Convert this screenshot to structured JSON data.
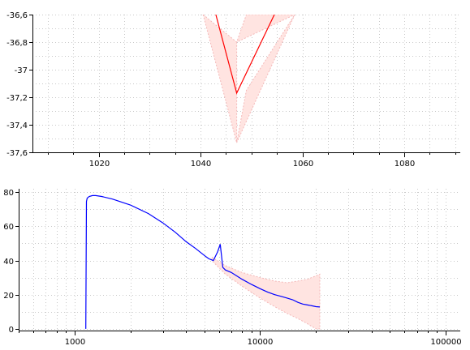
{
  "chart_data": [
    {
      "type": "line",
      "title": "",
      "xlabel": "",
      "ylabel": "",
      "xlim": [
        1007,
        1091
      ],
      "ylim": [
        -37.6,
        -36.6
      ],
      "x_ticks": [
        1020,
        1040,
        1060,
        1080
      ],
      "x_tick_labels": [
        "1020",
        "1040",
        "1060",
        "1080"
      ],
      "y_ticks": [
        -36.6,
        -36.8,
        -37.0,
        -37.2,
        -37.4,
        -37.6
      ],
      "y_tick_labels": [
        "-36,6",
        "-36,8",
        "-37",
        "-37,2",
        "-37,4",
        "-37,6"
      ],
      "grid": true,
      "colors": {
        "line": "#ff0000",
        "band": "#ffe4e1",
        "band_edge": "#f4b8b8"
      },
      "series": [
        {
          "x": [
            1043.0,
            1047.1,
            1054.5
          ],
          "y": [
            -36.6,
            -37.17,
            -36.6
          ]
        }
      ],
      "band": {
        "x": [
          1040.5,
          1047.1,
          1049.0,
          1058.5,
          1047.1
        ],
        "upper": [
          -36.6,
          -36.8,
          -36.6,
          -36.6,
          -36.8
        ],
        "lower": [
          -36.6,
          -37.53,
          -37.15,
          -36.6,
          -37.53
        ]
      }
    },
    {
      "type": "line",
      "title": "",
      "xlabel": "",
      "ylabel": "",
      "xscale": "log",
      "xlim": [
        500,
        120000
      ],
      "ylim": [
        -1,
        82
      ],
      "x_ticks": [
        1000,
        10000,
        100000
      ],
      "x_tick_labels": [
        "1000",
        "10000",
        "100000"
      ],
      "y_ticks": [
        0,
        20,
        40,
        60,
        80
      ],
      "y_tick_labels": [
        "0",
        "20",
        "40",
        "60",
        "80"
      ],
      "grid": true,
      "colors": {
        "line": "#0000ff",
        "band": "#ffe4e1",
        "band_edge": "#f4b8b8"
      },
      "series": [
        {
          "x": [
            1150,
            1160,
            1170,
            1200,
            1250,
            1300,
            1400,
            1600,
            2000,
            2500,
            3000,
            3500,
            4000,
            4500,
            5000,
            5300,
            5600,
            5900,
            6100,
            6300,
            6500,
            7000,
            8000,
            9000,
            10000,
            11000,
            12000,
            13000,
            14000,
            15000,
            16000,
            17000,
            18000,
            19000,
            20000,
            21000
          ],
          "y": [
            0,
            74.5,
            76.5,
            77.5,
            78.0,
            78.0,
            77.5,
            76.0,
            72.5,
            67.5,
            62.0,
            56.5,
            51.0,
            47.0,
            43.0,
            41.0,
            40.0,
            45.0,
            49.5,
            36.0,
            34.5,
            33.0,
            29.0,
            26.0,
            23.5,
            21.5,
            20.0,
            19.0,
            18.0,
            17.0,
            15.5,
            14.5,
            14.0,
            13.5,
            13.0,
            12.8
          ]
        }
      ],
      "band": {
        "x": [
          5500,
          6500,
          8000,
          10000,
          12000,
          14000,
          16000,
          18000,
          20000,
          21000
        ],
        "upper": [
          42,
          37,
          33,
          30,
          28,
          27,
          28,
          29,
          31,
          32
        ],
        "lower": [
          40,
          32,
          25,
          18,
          13,
          9,
          6,
          3,
          0,
          0
        ]
      }
    }
  ]
}
